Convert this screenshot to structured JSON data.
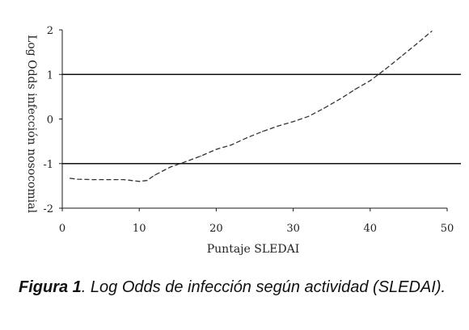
{
  "chart_data": {
    "type": "line",
    "xlabel": "Puntaje SLEDAI",
    "ylabel": "Log Odds infección nosocomial",
    "xlim": [
      0,
      50
    ],
    "ylim": [
      -2,
      2
    ],
    "xticks": [
      0,
      10,
      20,
      30,
      40,
      50
    ],
    "yticks": [
      2,
      1,
      0,
      -1,
      -2
    ],
    "reference_lines_y": [
      1,
      -1
    ],
    "grid": false,
    "series": [
      {
        "line_style": "dashed",
        "color": "#333333",
        "x": [
          1,
          2,
          4,
          6,
          8,
          9,
          10,
          11,
          12,
          14,
          16,
          18,
          20,
          22,
          24,
          26,
          28,
          30,
          32,
          34,
          36,
          38,
          40,
          42,
          44,
          46,
          48
        ],
        "y": [
          -1.33,
          -1.35,
          -1.36,
          -1.36,
          -1.36,
          -1.38,
          -1.4,
          -1.38,
          -1.26,
          -1.08,
          -0.96,
          -0.83,
          -0.68,
          -0.58,
          -0.42,
          -0.28,
          -0.16,
          -0.06,
          0.06,
          0.24,
          0.44,
          0.66,
          0.86,
          1.12,
          1.4,
          1.68,
          1.97
        ]
      }
    ]
  },
  "caption": {
    "label": "Figura 1",
    "text": ". Log Odds de infección según actividad (SLEDAI)."
  },
  "colors": {
    "axis": "#1a1a1a",
    "reference_line": "#111111",
    "curve": "#333333"
  }
}
